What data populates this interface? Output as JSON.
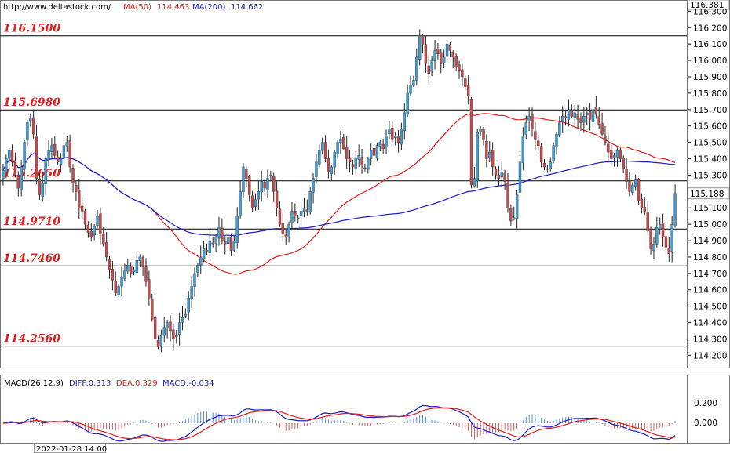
{
  "header": {
    "url": "http://www.deltastock.com/",
    "ma50_label": "MA(50)",
    "ma50_value": "114.463",
    "ma200_label": "MA(200)",
    "ma200_value": "114.662",
    "ma50_color": "#e31a1a",
    "ma200_color": "#1a1acc"
  },
  "price_axis": {
    "top_label": "116.381",
    "current_label": "115.188",
    "ticks": [
      "116.300",
      "116.200",
      "116.100",
      "116.000",
      "115.900",
      "115.800",
      "115.700",
      "115.600",
      "115.500",
      "115.400",
      "115.300",
      "115.200",
      "115.100",
      "115.000",
      "114.900",
      "114.800",
      "114.700",
      "114.600",
      "114.500",
      "114.400",
      "114.300",
      "114.200"
    ]
  },
  "macd": {
    "label": "MACD(26,12,9)",
    "diff_text": "DIFF:0.313",
    "dea_text": "DEA:0.329",
    "macd_text": "MACD:-0.034",
    "ticks": [
      "0.200",
      "0.000"
    ]
  },
  "time_label": "2022-01-28 14:00",
  "chart_data": {
    "type": "candlestick",
    "ylim": [
      114.13,
      116.34
    ],
    "levels": [
      {
        "label": "116.1500",
        "value": 116.15
      },
      {
        "label": "115.6980",
        "value": 115.698
      },
      {
        "label": "115.2650",
        "value": 115.265
      },
      {
        "label": "114.9710",
        "value": 114.971
      },
      {
        "label": "114.7460",
        "value": 114.746
      },
      {
        "label": "114.2560",
        "value": 114.256
      }
    ],
    "last_price": 115.188,
    "up_color": "#3d9fd6",
    "down_color": "#c94a4a",
    "closes": [
      115.33,
      115.4,
      115.45,
      115.38,
      115.3,
      115.22,
      115.35,
      115.5,
      115.62,
      115.65,
      115.55,
      115.28,
      115.18,
      115.25,
      115.4,
      115.45,
      115.48,
      115.42,
      115.38,
      115.4,
      115.48,
      115.5,
      115.35,
      115.25,
      115.2,
      115.1,
      115.08,
      115.0,
      114.95,
      114.92,
      114.99,
      115.05,
      114.94,
      114.88,
      114.8,
      114.72,
      114.66,
      114.58,
      114.62,
      114.68,
      114.72,
      114.75,
      114.7,
      114.72,
      114.78,
      114.8,
      114.74,
      114.65,
      114.55,
      114.42,
      114.3,
      114.25,
      114.32,
      114.37,
      114.4,
      114.35,
      114.3,
      114.32,
      114.4,
      114.43,
      114.45,
      114.55,
      114.62,
      114.7,
      114.75,
      114.8,
      114.85,
      114.84,
      114.9,
      114.88,
      114.92,
      114.98,
      114.9,
      114.88,
      114.92,
      114.84,
      114.9,
      115.05,
      115.2,
      115.35,
      115.28,
      115.18,
      115.1,
      115.15,
      115.2,
      115.26,
      115.22,
      115.28,
      115.3,
      115.2,
      115.1,
      115.0,
      114.94,
      114.92,
      115.0,
      115.08,
      115.05,
      115.04,
      115.08,
      115.1,
      115.08,
      115.2,
      115.28,
      115.38,
      115.45,
      115.5,
      115.4,
      115.32,
      115.35,
      115.44,
      115.5,
      115.52,
      115.46,
      115.4,
      115.38,
      115.35,
      115.4,
      115.42,
      115.36,
      115.34,
      115.4,
      115.45,
      115.42,
      115.48,
      115.5,
      115.46,
      115.54,
      115.58,
      115.52,
      115.54,
      115.5,
      115.58,
      115.68,
      115.8,
      115.85,
      115.88,
      116.02,
      116.15,
      116.1,
      115.98,
      115.92,
      116.0,
      116.06,
      116.04,
      115.98,
      116.02,
      116.1,
      116.06,
      116.02,
      115.96,
      115.94,
      115.9,
      115.84,
      115.78,
      115.24,
      115.28,
      115.56,
      115.58,
      115.52,
      115.4,
      115.44,
      115.35,
      115.3,
      115.28,
      115.32,
      115.26,
      115.1,
      115.02,
      115.04,
      115.18,
      115.38,
      115.54,
      115.62,
      115.66,
      115.58,
      115.52,
      115.48,
      115.38,
      115.35,
      115.34,
      115.38,
      115.48,
      115.55,
      115.62,
      115.66,
      115.65,
      115.7,
      115.66,
      115.68,
      115.64,
      115.62,
      115.66,
      115.68,
      115.64,
      115.7,
      115.67,
      115.61,
      115.55,
      115.5,
      115.44,
      115.4,
      115.42,
      115.45,
      115.4,
      115.34,
      115.26,
      115.2,
      115.24,
      115.27,
      115.14,
      115.1,
      115.08,
      114.96,
      114.85,
      114.88,
      114.98,
      115.0,
      114.92,
      114.86,
      114.82,
      115.0,
      115.188
    ]
  }
}
